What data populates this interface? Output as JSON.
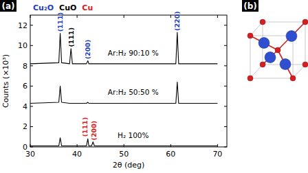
{
  "chart_data": {
    "type": "line",
    "xlabel": "2θ (deg)",
    "ylabel": "Counts (×10³)",
    "x": [
      30,
      36.1,
      36.4,
      36.7,
      38.4,
      38.7,
      39.0,
      42.0,
      42.3,
      42.5,
      43.1,
      43.4,
      43.7,
      61.1,
      61.4,
      61.7,
      70
    ],
    "series": [
      {
        "name": "Ar:H₂ 90:10 %",
        "color": "#000000",
        "values": [
          8.2,
          8.3,
          11.2,
          8.3,
          8.2,
          9.7,
          8.2,
          8.2,
          8.5,
          8.2,
          8.2,
          8.2,
          8.2,
          8.2,
          11.3,
          8.2,
          8.2
        ]
      },
      {
        "name": "Ar:H₂ 50:50 %",
        "color": "#000000",
        "values": [
          4.3,
          4.4,
          6.0,
          4.4,
          4.3,
          4.3,
          4.3,
          4.3,
          4.4,
          4.3,
          4.3,
          4.3,
          4.3,
          4.3,
          6.4,
          4.3,
          4.3
        ]
      },
      {
        "name": "H₂ 100%",
        "color": "#000000",
        "values": [
          0.1,
          0.1,
          0.9,
          0.1,
          0.1,
          0.1,
          0.1,
          0.1,
          0.8,
          0.1,
          0.1,
          0.5,
          0.1,
          0.1,
          0.1,
          0.1,
          0.1
        ]
      }
    ],
    "phases": [
      {
        "name": "Cu₂O",
        "color": "#1f3fc8"
      },
      {
        "name": "CuO",
        "color": "#000000"
      },
      {
        "name": "Cu",
        "color": "#dd1a1a"
      }
    ],
    "annotations": [
      {
        "text": "(111)",
        "x": 36.4,
        "y": 11.35,
        "color": "#1f3fc8"
      },
      {
        "text": "(111)",
        "x": 38.7,
        "y": 9.85,
        "color": "#000000"
      },
      {
        "text": "(200)",
        "x": 42.3,
        "y": 8.65,
        "color": "#1f3fc8"
      },
      {
        "text": "(220)",
        "x": 61.4,
        "y": 11.45,
        "color": "#1f3fc8"
      },
      {
        "text": "(111)",
        "x": 41.7,
        "y": 1.0,
        "color": "#dd1a1a"
      },
      {
        "text": "(200)",
        "x": 43.6,
        "y": 0.65,
        "color": "#dd1a1a"
      }
    ],
    "xlim": [
      30,
      72
    ],
    "xticks": [
      30,
      40,
      50,
      60,
      70
    ],
    "ylim": [
      0,
      13
    ],
    "yticks": [
      0,
      2,
      4,
      6,
      8,
      10,
      12
    ],
    "grid": false
  },
  "panel_labels": [
    "(a)",
    "(b)"
  ]
}
